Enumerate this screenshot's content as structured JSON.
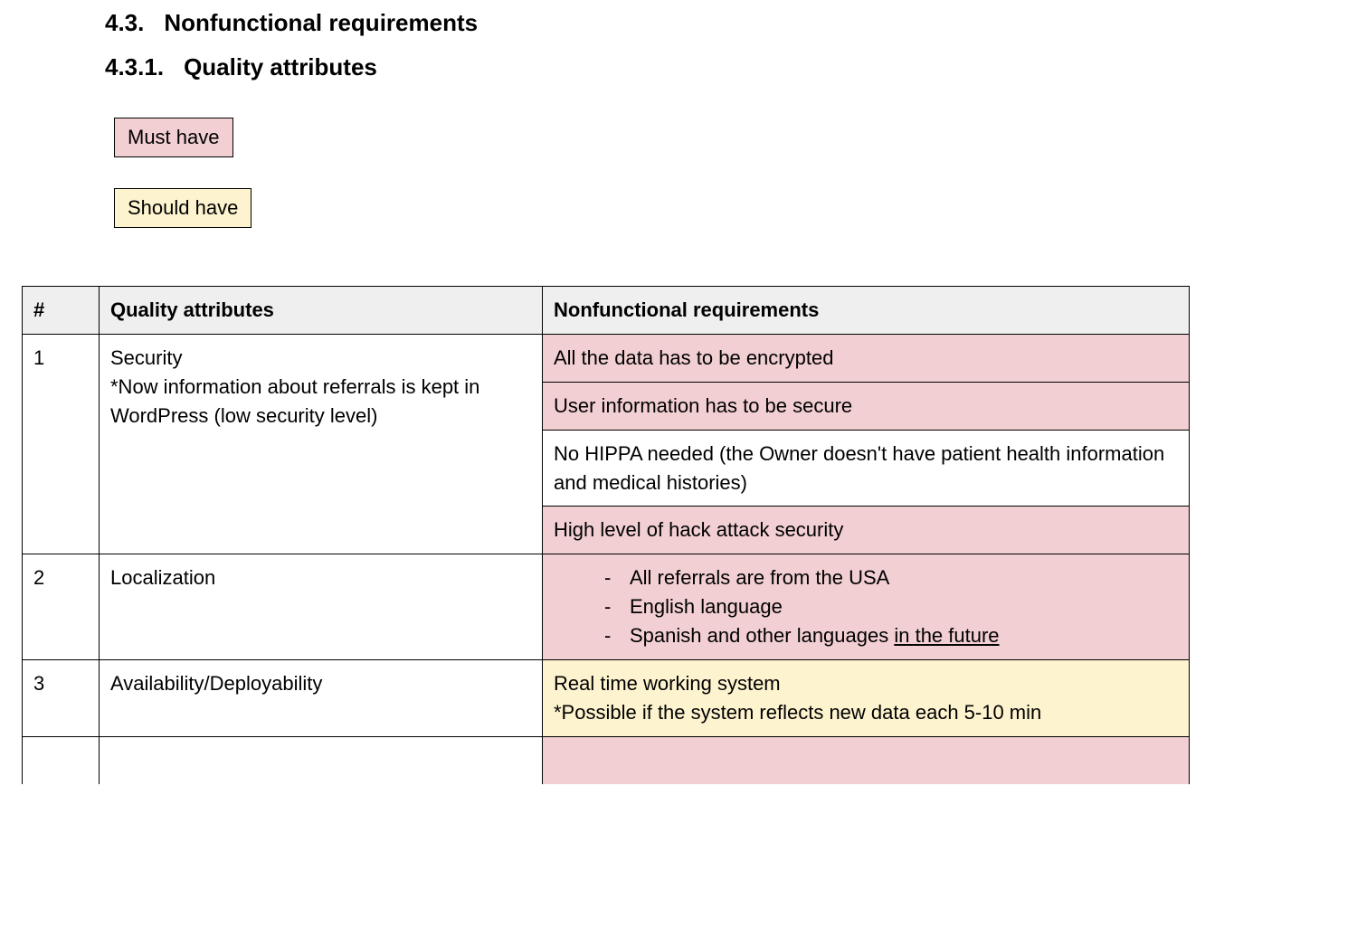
{
  "colors": {
    "must_have_bg": "#f2cfd2",
    "should_have_bg": "#fdf3cf",
    "neutral_bg": "#ffffff",
    "header_bg": "#efefef",
    "border": "#000000"
  },
  "headings": {
    "h43_num": "4.3.",
    "h43_text": "Nonfunctional requirements",
    "h431_num": "4.3.1.",
    "h431_text": "Quality attributes"
  },
  "legend": {
    "must": "Must have",
    "should": "Should have"
  },
  "table": {
    "headers": {
      "num": "#",
      "qa": "Quality attributes",
      "req": "Nonfunctional requirements"
    },
    "rows": [
      {
        "num": "1",
        "qa_line1": "Security",
        "qa_line2": "*Now information about referrals is kept in WordPress (low security level)",
        "reqs": [
          {
            "text": "All the data has to be encrypted",
            "priority": "must"
          },
          {
            "text": "User information has to be secure",
            "priority": "must"
          },
          {
            "text": "No HIPPA needed (the Owner doesn't have patient health information and medical histories)",
            "priority": "none"
          },
          {
            "text": "High level of hack attack security",
            "priority": "must"
          }
        ]
      },
      {
        "num": "2",
        "qa_line1": "Localization",
        "qa_line2": "",
        "loc_priority": "must",
        "loc_items": {
          "a": "All referrals are from the USA",
          "b": "English language",
          "c_pre": "Spanish and other languages ",
          "c_ul": "in the future"
        }
      },
      {
        "num": "3",
        "qa_line1": "Availability/Deployability",
        "qa_line2": "",
        "avail_priority": "should",
        "avail_line1": "Real time working system",
        "avail_line2": "*Possible if the system reflects new data each 5-10 min"
      }
    ]
  }
}
